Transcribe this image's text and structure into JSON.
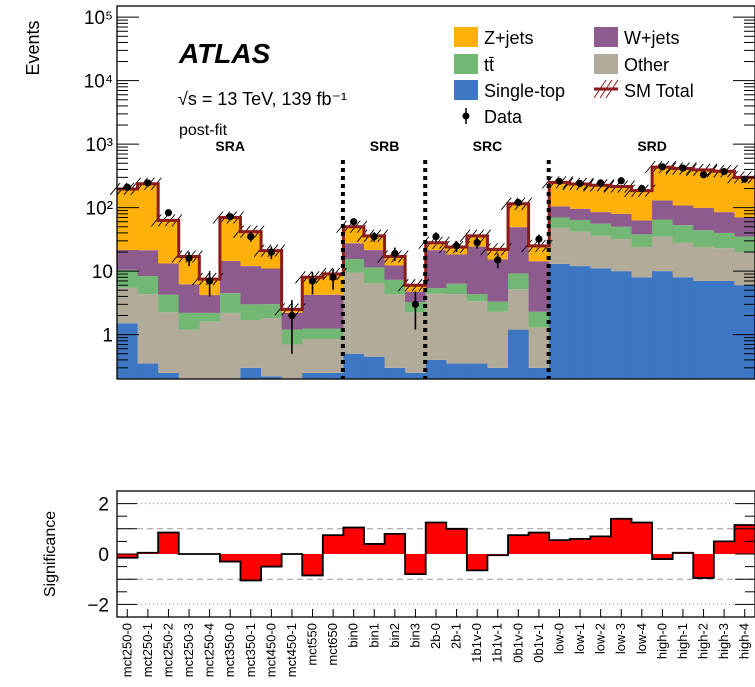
{
  "chart_data": [
    {
      "type": "bar",
      "subtype": "stacked-histogram-log",
      "ylabel": "Events",
      "yscale": "log",
      "ylim": [
        0.2,
        150000
      ],
      "ytick_labels": [
        "1",
        "10",
        "10²",
        "10³",
        "10⁴",
        "10⁵"
      ],
      "ytick_values": [
        1,
        10,
        100,
        1000,
        10000,
        100000
      ],
      "experiment_label": "ATLAS",
      "energy_label": "√s = 13 TeV, 139 fb⁻¹",
      "fit_label": "post-fit",
      "categories": [
        "mct250-0",
        "mct250-1",
        "mct250-2",
        "mct250-3",
        "mct250-4",
        "mct350-0",
        "mct350-1",
        "mct450-0",
        "mct450-1",
        "mct550",
        "mct650",
        "bin0",
        "bin1",
        "bin2",
        "bin3",
        "2b-0",
        "2b-1",
        "1b1v-0",
        "1b1v-1",
        "0b1v-0",
        "0b1v-1",
        "low-0",
        "low-1",
        "low-2",
        "low-3",
        "low-4",
        "high-0",
        "high-1",
        "high-2",
        "high-3",
        "high-4"
      ],
      "regions": [
        {
          "label": "SRA",
          "first_bin": 0,
          "last_bin": 10
        },
        {
          "label": "SRB",
          "first_bin": 11,
          "last_bin": 14
        },
        {
          "label": "SRC",
          "first_bin": 15,
          "last_bin": 20
        },
        {
          "label": "SRD",
          "first_bin": 21,
          "last_bin": 30
        }
      ],
      "series": [
        {
          "name": "Single-top",
          "color": "#3d76c2",
          "values": [
            1.5,
            0.35,
            0.25,
            0.2,
            0.2,
            0.2,
            0.3,
            0.22,
            0.2,
            0.25,
            0.25,
            0.5,
            0.45,
            0.3,
            0.25,
            0.4,
            0.35,
            0.35,
            0.3,
            1.2,
            0.3,
            13,
            12,
            11,
            10,
            8,
            10,
            8,
            7,
            7,
            6
          ]
        },
        {
          "name": "Other",
          "color": "#b3ab9a",
          "values": [
            4,
            4,
            2,
            1,
            1.4,
            2,
            1.4,
            1.6,
            0.5,
            0.6,
            0.6,
            9,
            6,
            4,
            2,
            4,
            4,
            3,
            2,
            4,
            1,
            35,
            30,
            25,
            22,
            16,
            25,
            20,
            17,
            16,
            14
          ]
        },
        {
          "name": "tt̄",
          "color": "#72b874",
          "values": [
            5,
            4,
            2,
            1,
            0.6,
            2.3,
            1.3,
            1.2,
            0.5,
            0.4,
            0.4,
            6,
            5,
            3,
            1,
            1,
            2,
            1,
            1,
            4,
            1,
            22,
            22,
            20,
            18,
            14,
            30,
            25,
            20,
            17,
            15
          ]
        },
        {
          "name": "W+jets",
          "color": "#8d5b8e",
          "values": [
            11,
            13,
            9,
            4,
            2,
            10,
            9,
            8,
            1,
            3,
            3,
            12,
            10,
            5,
            1.5,
            16,
            12,
            20,
            12,
            40,
            12,
            35,
            32,
            29,
            30,
            25,
            65,
            55,
            55,
            45,
            35
          ]
        },
        {
          "name": "Z+jets",
          "color": "#fdb10a",
          "values": [
            176,
            216,
            50,
            11,
            3.3,
            55,
            30,
            10,
            0.3,
            4,
            5,
            22,
            14,
            5,
            1.2,
            6,
            5,
            12,
            8,
            65,
            10,
            145,
            140,
            140,
            135,
            122,
            305,
            305,
            295,
            290,
            230
          ]
        }
      ],
      "sm_total": [
        197,
        238,
        63,
        17,
        7.5,
        70,
        42,
        21,
        2.5,
        8,
        9,
        50,
        36,
        17,
        6,
        28,
        24,
        36,
        22,
        115,
        25,
        250,
        236,
        225,
        215,
        185,
        435,
        413,
        394,
        375,
        300
      ],
      "data": {
        "name": "Data",
        "values": [
          210,
          245,
          83,
          16,
          7,
          72,
          35,
          20,
          2,
          7,
          8,
          60,
          35,
          19,
          3,
          35,
          25,
          28,
          15,
          120,
          32,
          260,
          240,
          245,
          265,
          200,
          440,
          420,
          330,
          370,
          280
        ],
        "errors": [
          15,
          16,
          9,
          4,
          3,
          9,
          6,
          4.5,
          1.5,
          2.7,
          2.9,
          8,
          6,
          4.5,
          1.8,
          6,
          5,
          5.3,
          3.9,
          11,
          5.7,
          16,
          15,
          16,
          16,
          14,
          21,
          20,
          18,
          19,
          17
        ]
      },
      "legend": [
        "Z+jets",
        "W+jets",
        "tt̄",
        "Other",
        "Single-top",
        "SM Total",
        "Data"
      ],
      "legend_position": "top-right",
      "total_line_color": "#8b1a1a"
    },
    {
      "type": "bar",
      "subtype": "significance-panel",
      "ylabel": "Significance",
      "ylim": [
        -2.5,
        2.5
      ],
      "ytick_labels": [
        "−2",
        "0",
        "2"
      ],
      "ytick_values": [
        -2,
        0,
        2
      ],
      "color": "#ff0000",
      "values": [
        -0.15,
        0.05,
        0.85,
        0,
        0,
        -0.3,
        -1.05,
        -0.5,
        0,
        -0.85,
        0.75,
        1.05,
        0.4,
        0.8,
        -0.8,
        1.25,
        1.0,
        -0.65,
        -0.05,
        0.75,
        0.85,
        0.55,
        0.6,
        0.7,
        1.4,
        1.25,
        -0.2,
        0.05,
        -0.95,
        0.5,
        1.15
      ],
      "dashed_lines": [
        -1,
        1
      ],
      "dotted_lines": [
        -2,
        2
      ]
    }
  ]
}
